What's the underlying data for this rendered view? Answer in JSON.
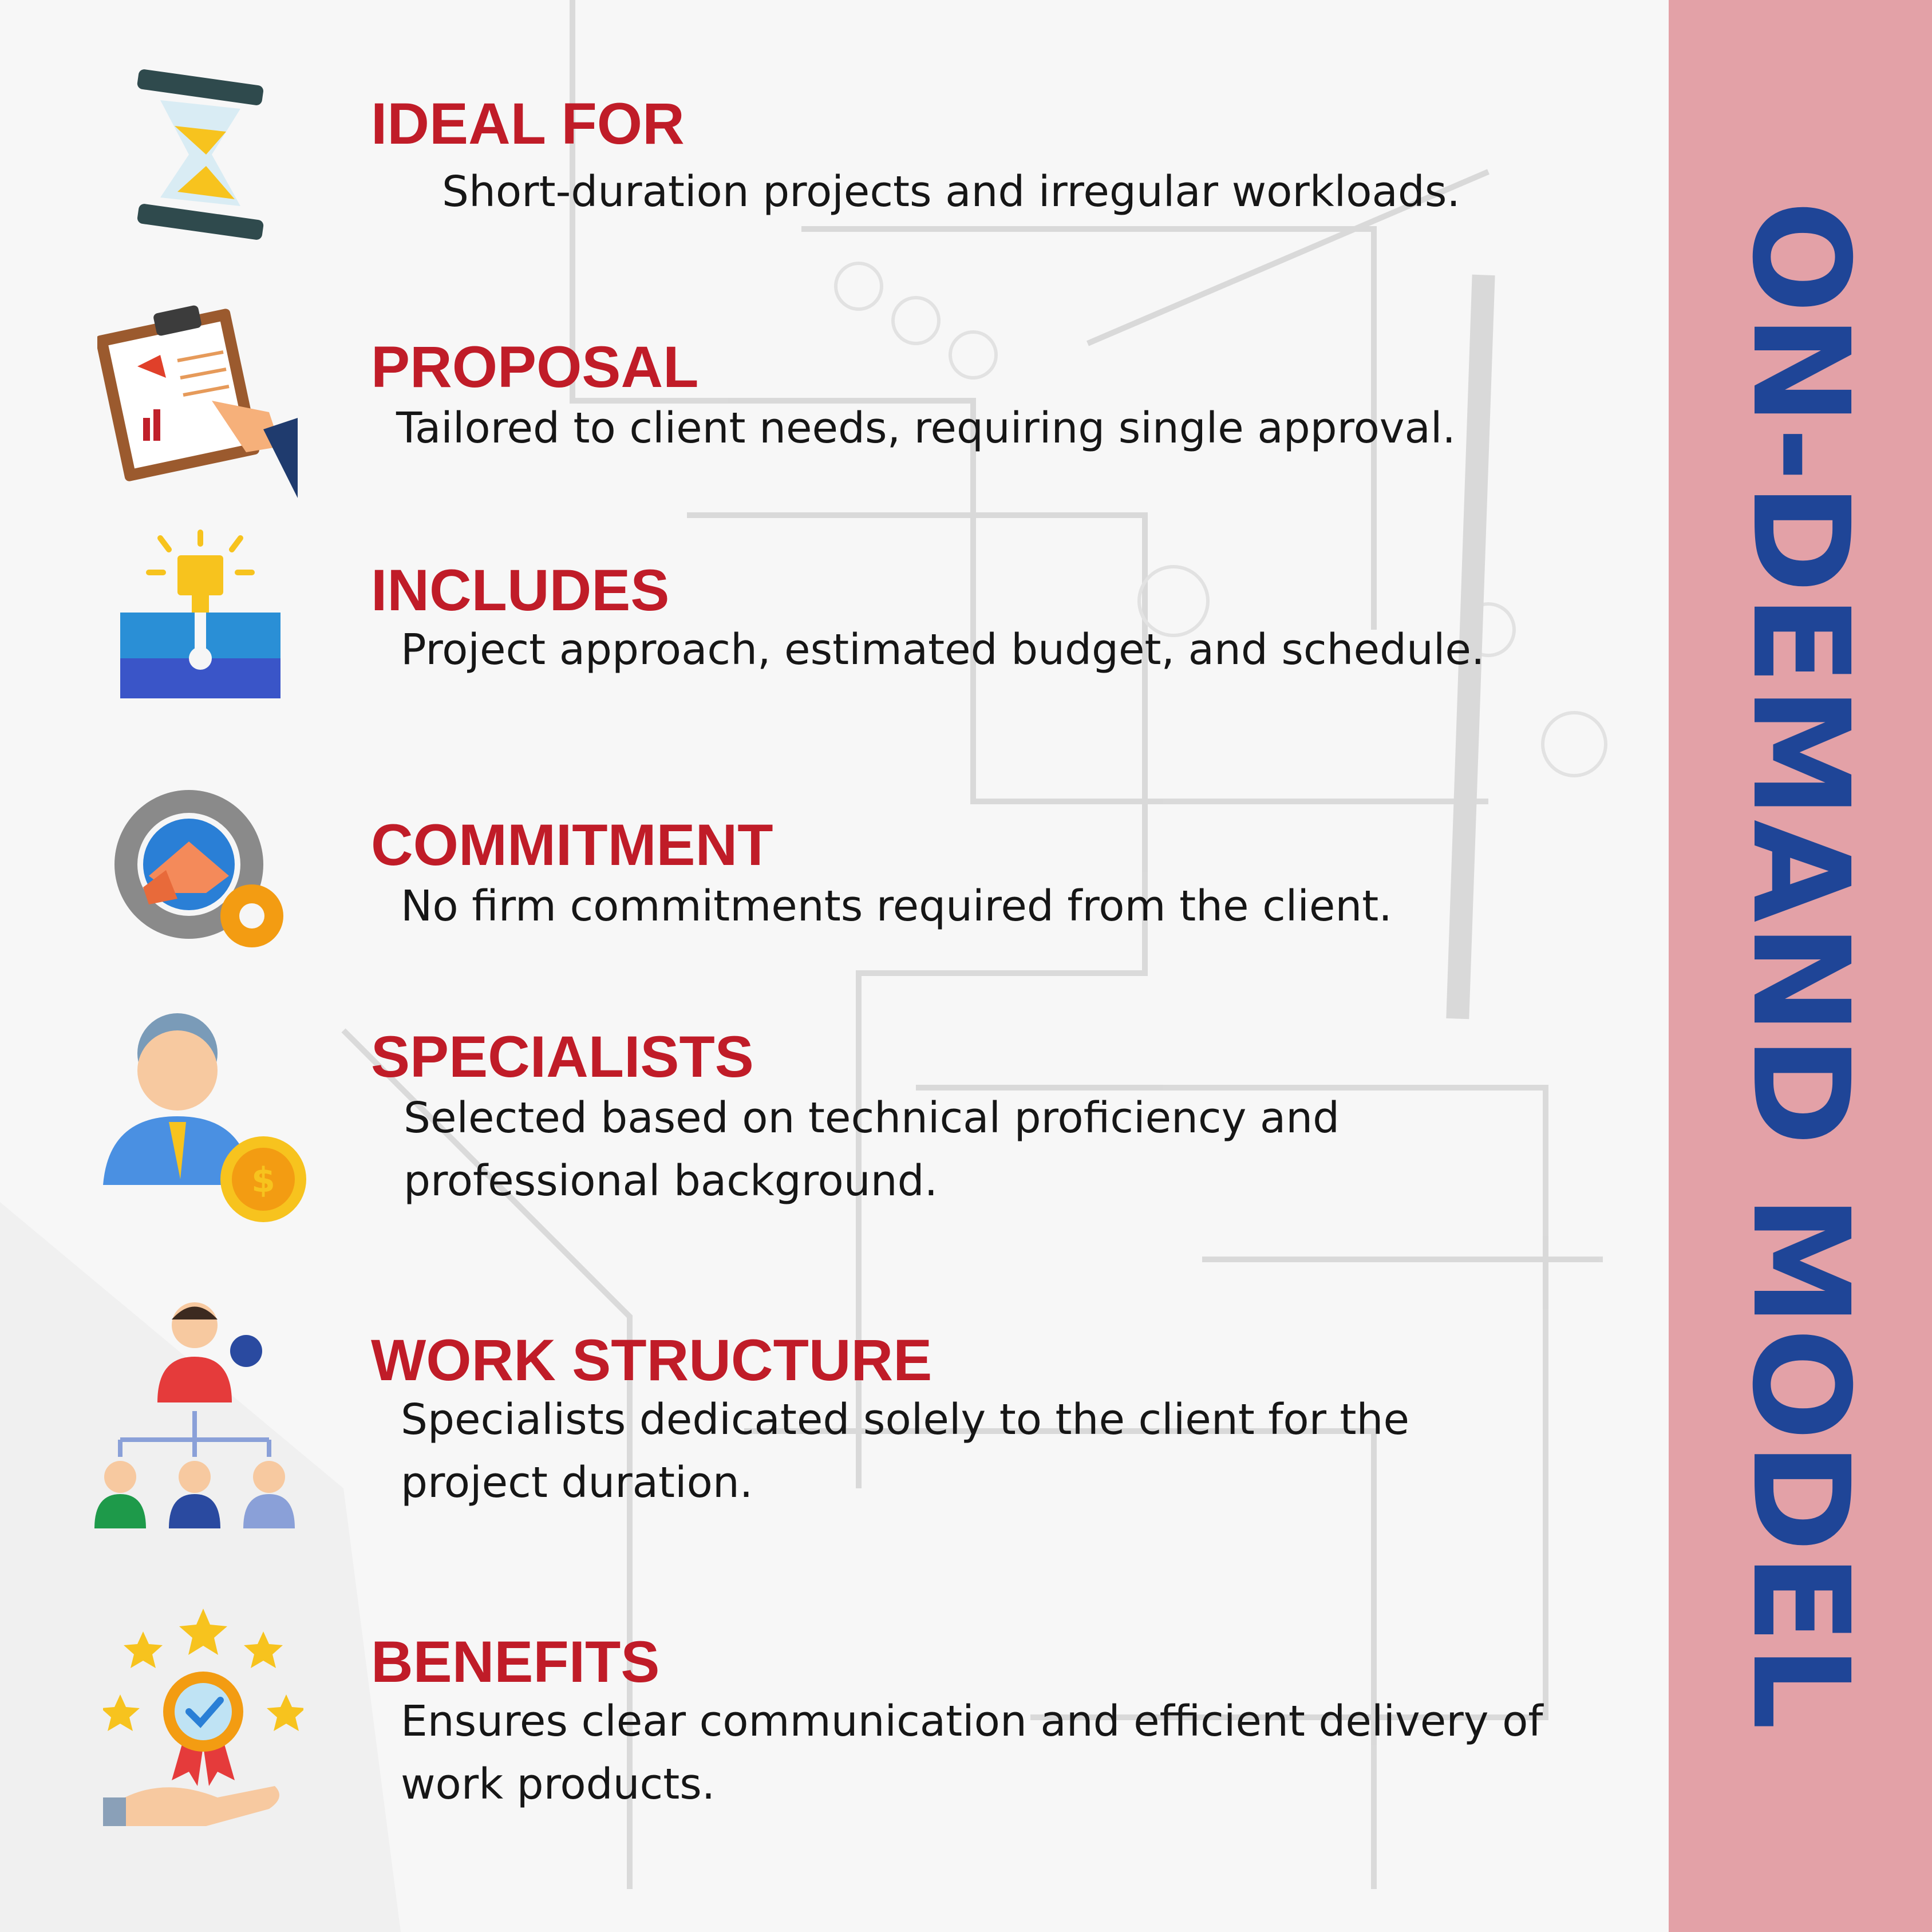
{
  "side_title": "ON-DEMAND MODEL",
  "colors": {
    "heading": "#c01c28",
    "body_text": "#161616",
    "side_band": "#e3a1a7",
    "side_title": "#1f4597",
    "background": "#f6f6f6"
  },
  "items": [
    {
      "icon": "hourglass-icon",
      "heading": "IDEAL FOR",
      "text": "Short-duration projects and irregular workloads."
    },
    {
      "icon": "clipboard-report-icon",
      "heading": "PROPOSAL",
      "text": "Tailored to client needs, requiring single approval."
    },
    {
      "icon": "puzzle-lightbulb-icon",
      "heading": "INCLUDES",
      "text": "Project approach, estimated budget, and schedule."
    },
    {
      "icon": "handshake-gear-icon",
      "heading": "COMMITMENT",
      "text": "No firm commitments required from the client."
    },
    {
      "icon": "specialist-coin-icon",
      "heading": "SPECIALISTS",
      "text": "Selected based on technical proficiency and professional background."
    },
    {
      "icon": "team-hierarchy-icon",
      "heading": "WORK STRUCTURE",
      "text": "Specialists dedicated solely to the client for the project duration."
    },
    {
      "icon": "award-badge-icon",
      "heading": "BENEFITS",
      "text": "Ensures clear communication and efficient delivery of work products."
    }
  ]
}
